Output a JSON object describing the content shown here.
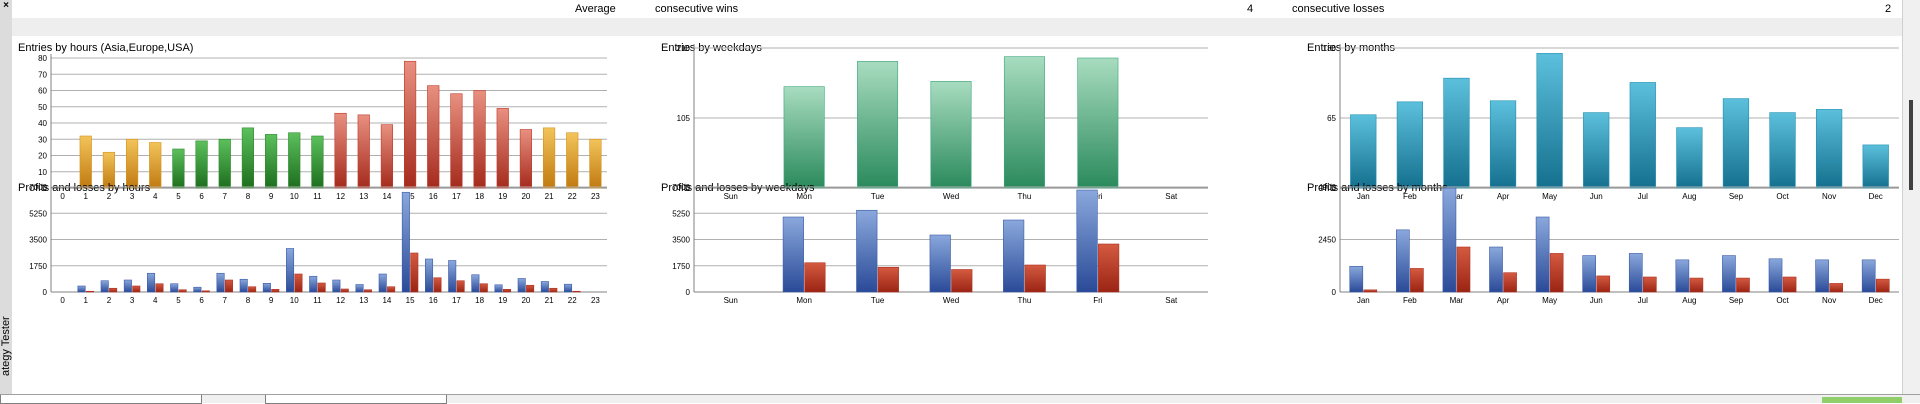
{
  "sidebar": {
    "close_label": "×",
    "label": "ategy Tester"
  },
  "summary": {
    "average_label": "Average",
    "wins_label": "consecutive wins",
    "wins_value": "4",
    "losses_label": "consecutive losses",
    "losses_value": "2"
  },
  "colors": {
    "grid": "#b0b0b0",
    "profit_blue": "#3a5aa8",
    "loss_red": "#b03020"
  },
  "chart_data": [
    {
      "id": "entries-hours",
      "type": "bar",
      "title": "Entries by hours (Asia,Europe,USA)",
      "categories": [
        "0",
        "1",
        "2",
        "3",
        "4",
        "5",
        "6",
        "7",
        "8",
        "9",
        "10",
        "11",
        "12",
        "13",
        "14",
        "15",
        "16",
        "17",
        "18",
        "19",
        "20",
        "21",
        "22",
        "23"
      ],
      "values": [
        0,
        32,
        22,
        30,
        28,
        24,
        29,
        30,
        37,
        33,
        34,
        32,
        46,
        45,
        39,
        78,
        63,
        58,
        60,
        49,
        36,
        37,
        34,
        30
      ],
      "bar_colors": [
        "#d6921e",
        "#d6921e",
        "#d6921e",
        "#d6921e",
        "#d6921e",
        "#2e8b2e",
        "#2e8b2e",
        "#2e8b2e",
        "#2e8b2e",
        "#2e8b2e",
        "#2e8b2e",
        "#2e8b2e",
        "#c0392b",
        "#c0392b",
        "#c0392b",
        "#c0392b",
        "#c0392b",
        "#c0392b",
        "#c0392b",
        "#c0392b",
        "#c0392b",
        "#d6921e",
        "#d6921e",
        "#d6921e"
      ],
      "yticks": [
        0,
        10,
        20,
        30,
        40,
        50,
        60,
        70,
        80
      ],
      "ylim": [
        0,
        80
      ]
    },
    {
      "id": "entries-weekdays",
      "type": "bar",
      "title": "Entries by weekdays",
      "categories": [
        "Sun",
        "Mon",
        "Tue",
        "Wed",
        "Thu",
        "Fri",
        "Sat"
      ],
      "values": [
        0,
        152,
        190,
        160,
        197,
        195,
        0
      ],
      "bar_color": "#3aa57a",
      "yticks": [
        0,
        105,
        210
      ],
      "ylim": [
        0,
        210
      ]
    },
    {
      "id": "entries-months",
      "type": "bar",
      "title": "Entries by months",
      "categories": [
        "Jan",
        "Feb",
        "Mar",
        "Apr",
        "May",
        "Jun",
        "Jul",
        "Aug",
        "Sep",
        "Oct",
        "Nov",
        "Dec"
      ],
      "values": [
        68,
        80,
        102,
        81,
        125,
        70,
        98,
        56,
        83,
        70,
        73,
        40
      ],
      "bar_color": "#1e8fb0",
      "yticks": [
        0,
        65,
        130
      ],
      "ylim": [
        0,
        130
      ]
    },
    {
      "id": "pl-hours",
      "type": "bar",
      "title": "Profits and losses by hours",
      "categories": [
        "0",
        "1",
        "2",
        "3",
        "4",
        "5",
        "6",
        "7",
        "8",
        "9",
        "10",
        "11",
        "12",
        "13",
        "14",
        "15",
        "16",
        "17",
        "18",
        "19",
        "20",
        "21",
        "22",
        "23"
      ],
      "series": [
        {
          "values": [
            0,
            400,
            750,
            800,
            1250,
            550,
            320,
            1250,
            850,
            580,
            2900,
            1050,
            800,
            500,
            1200,
            6650,
            2200,
            2100,
            1150,
            480,
            900,
            700,
            520,
            0
          ]
        },
        {
          "values": [
            0,
            50,
            250,
            400,
            550,
            150,
            80,
            800,
            350,
            180,
            1200,
            600,
            200,
            150,
            350,
            2600,
            950,
            750,
            550,
            180,
            450,
            250,
            50,
            0
          ]
        }
      ],
      "yticks": [
        0,
        1750,
        3500,
        5250,
        7000
      ],
      "ylim": [
        0,
        7000
      ]
    },
    {
      "id": "pl-weekdays",
      "type": "bar",
      "title": "Profits and losses by weekdays",
      "categories": [
        "Sun",
        "Mon",
        "Tue",
        "Wed",
        "Thu",
        "Fri",
        "Sat"
      ],
      "series": [
        {
          "values": [
            0,
            5000,
            5450,
            3800,
            4800,
            6800,
            0
          ]
        },
        {
          "values": [
            0,
            1950,
            1650,
            1500,
            1800,
            3200,
            0
          ]
        }
      ],
      "yticks": [
        0,
        1750,
        3500,
        5250,
        7000
      ],
      "ylim": [
        0,
        7000
      ]
    },
    {
      "id": "pl-months",
      "type": "bar",
      "title": "Profits and losses by months",
      "categories": [
        "Jan",
        "Feb",
        "Mar",
        "Apr",
        "May",
        "Jun",
        "Jul",
        "Aug",
        "Sep",
        "Oct",
        "Nov",
        "Dec"
      ],
      "series": [
        {
          "values": [
            1200,
            2900,
            4850,
            2100,
            3500,
            1700,
            1800,
            1500,
            1700,
            1550,
            1500,
            1500
          ]
        },
        {
          "values": [
            100,
            1100,
            2100,
            900,
            1800,
            750,
            700,
            650,
            650,
            700,
            400,
            600
          ]
        }
      ],
      "yticks": [
        0,
        2450,
        4900
      ],
      "ylim": [
        0,
        4900
      ]
    }
  ]
}
